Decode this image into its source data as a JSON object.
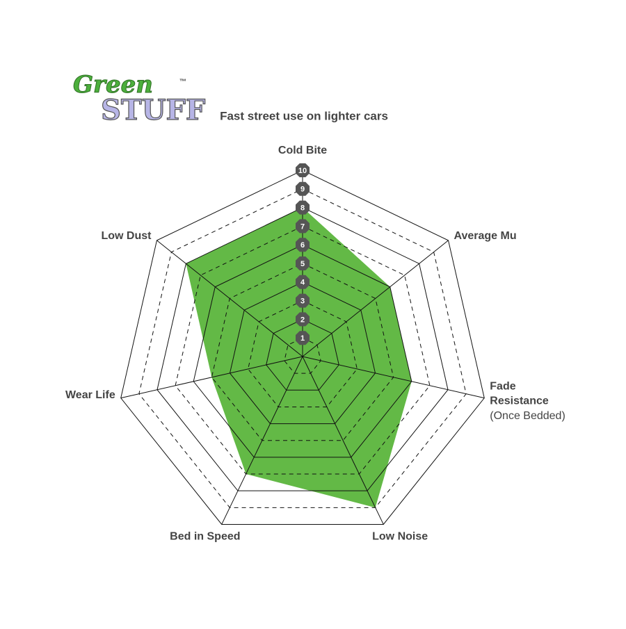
{
  "logo": {
    "line1": "Green",
    "line2": "STUFF",
    "mark": "™"
  },
  "chart_data": {
    "type": "radar",
    "title": "Fast street use on lighter cars",
    "categories": [
      "Cold Bite",
      "Average Mu",
      "Fade Resistance",
      "Low Noise",
      "Bed in Speed",
      "Wear Life",
      "Low Dust"
    ],
    "category_note": {
      "index": 2,
      "text": "(Once Bedded)"
    },
    "values": [
      8,
      6,
      6,
      9,
      7,
      5,
      8
    ],
    "color": "#63b946",
    "rlim": [
      0,
      10
    ],
    "rticks": [
      1,
      2,
      3,
      4,
      5,
      6,
      7,
      8,
      9,
      10
    ]
  }
}
